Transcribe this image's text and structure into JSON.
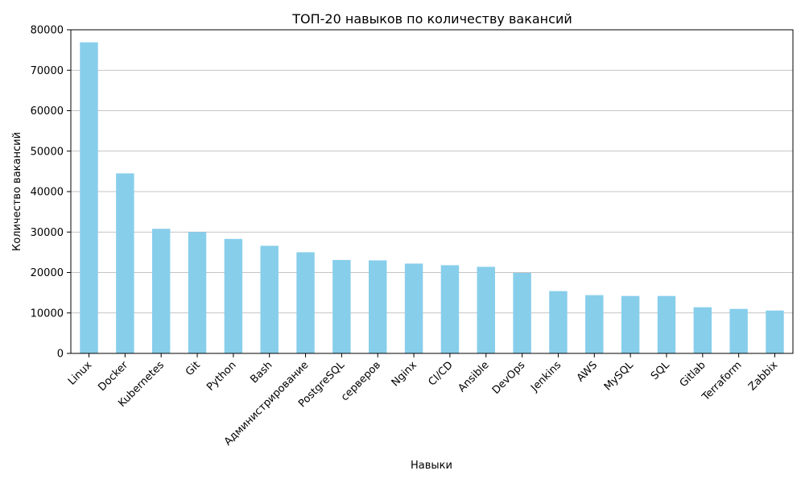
{
  "chart_data": {
    "type": "bar",
    "title": "ТОП-20 навыков по количеству вакансий",
    "xlabel": "Навыки",
    "ylabel": "Количество вакансий",
    "ylim": [
      0,
      80000
    ],
    "yticks": [
      0,
      10000,
      20000,
      30000,
      40000,
      50000,
      60000,
      70000,
      80000
    ],
    "grid": "y",
    "bar_color": "#87ceeb",
    "categories": [
      "Linux",
      "Docker",
      "Kubernetes",
      "Git",
      "Python",
      "Bash",
      "Администрирование",
      "PostgreSQL",
      "серверов",
      "Nginx",
      "CI/CD",
      "Ansible",
      "DevOps",
      "Jenkins",
      "AWS",
      "MySQL",
      "SQL",
      "Gitlab",
      "Terraform",
      "Zabbix"
    ],
    "values": [
      76900,
      44500,
      30800,
      30000,
      28300,
      26600,
      25000,
      23100,
      23000,
      22200,
      21800,
      21400,
      19900,
      15400,
      14400,
      14200,
      14200,
      11400,
      11000,
      10600
    ]
  }
}
